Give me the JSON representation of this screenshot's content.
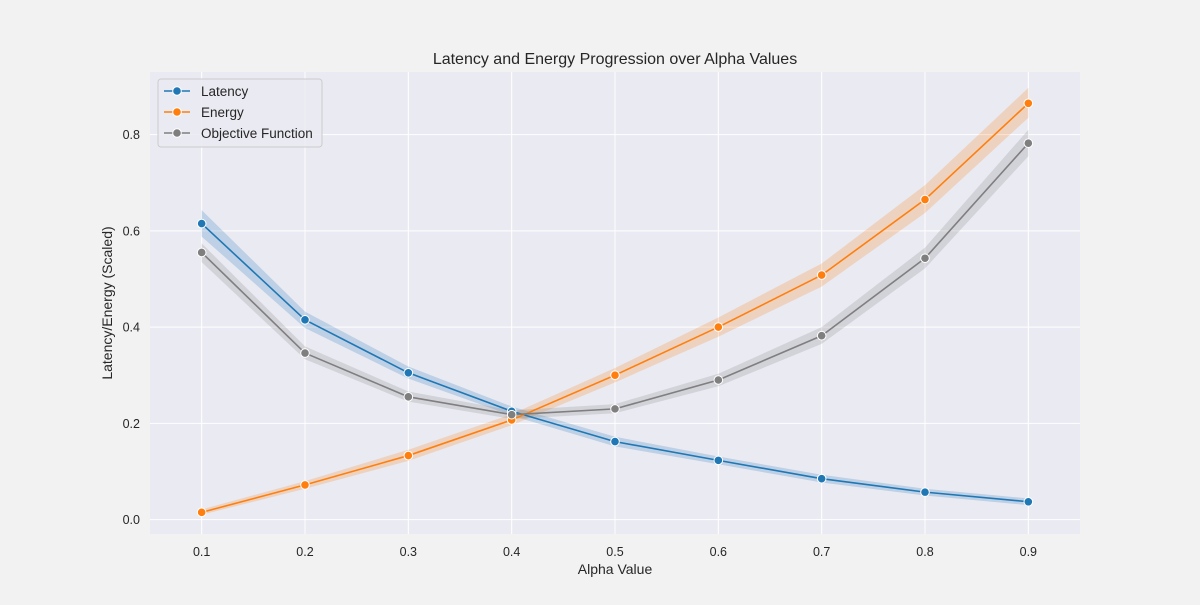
{
  "chart_data": {
    "type": "line",
    "title": "Latency and Energy Progression over Alpha Values",
    "xlabel": "Alpha Value",
    "ylabel": "Latency/Energy (Scaled)",
    "x": [
      0.1,
      0.2,
      0.3,
      0.4,
      0.5,
      0.6,
      0.7,
      0.8,
      0.9
    ],
    "x_tick_labels": [
      "0.1",
      "0.2",
      "0.3",
      "0.4",
      "0.5",
      "0.6",
      "0.7",
      "0.8",
      "0.9"
    ],
    "xlim": [
      0.05,
      0.95
    ],
    "ylim": [
      -0.03,
      0.93
    ],
    "y_ticks": [
      0.0,
      0.2,
      0.4,
      0.6,
      0.8
    ],
    "y_tick_labels": [
      "0.0",
      "0.2",
      "0.4",
      "0.6",
      "0.8"
    ],
    "grid": true,
    "legend_position": "top-left",
    "series": [
      {
        "name": "Latency",
        "color": "#1f77b4",
        "values": [
          0.615,
          0.415,
          0.305,
          0.225,
          0.162,
          0.123,
          0.085,
          0.057,
          0.037
        ],
        "lower": [
          0.588,
          0.398,
          0.293,
          0.216,
          0.152,
          0.115,
          0.077,
          0.05,
          0.03
        ],
        "upper": [
          0.643,
          0.432,
          0.318,
          0.235,
          0.172,
          0.131,
          0.093,
          0.064,
          0.044
        ]
      },
      {
        "name": "Energy",
        "color": "#ff7f0e",
        "values": [
          0.015,
          0.072,
          0.133,
          0.207,
          0.3,
          0.4,
          0.508,
          0.665,
          0.865
        ],
        "lower": [
          0.01,
          0.064,
          0.122,
          0.196,
          0.285,
          0.38,
          0.484,
          0.637,
          0.835
        ],
        "upper": [
          0.021,
          0.08,
          0.145,
          0.219,
          0.315,
          0.42,
          0.532,
          0.695,
          0.897
        ]
      },
      {
        "name": "Objective Function",
        "color": "#7f7f7f",
        "values": [
          0.555,
          0.346,
          0.255,
          0.218,
          0.23,
          0.29,
          0.382,
          0.543,
          0.782
        ],
        "lower": [
          0.535,
          0.333,
          0.245,
          0.209,
          0.221,
          0.277,
          0.365,
          0.522,
          0.755
        ],
        "upper": [
          0.574,
          0.36,
          0.266,
          0.227,
          0.24,
          0.303,
          0.4,
          0.565,
          0.81
        ]
      }
    ]
  }
}
